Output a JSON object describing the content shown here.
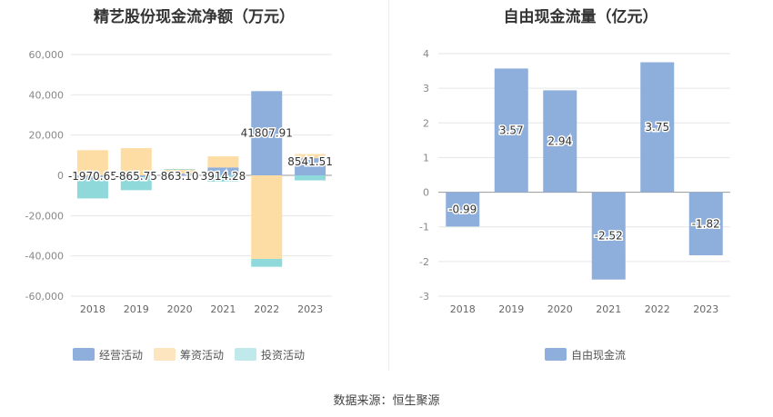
{
  "footer": "数据来源：恒生聚源",
  "chart_data": [
    {
      "type": "bar",
      "stacked": true,
      "title": "精艺股份现金流净额（万元）",
      "categories": [
        "2018",
        "2019",
        "2020",
        "2021",
        "2022",
        "2023"
      ],
      "ylim": [
        -60000,
        60000
      ],
      "yticks": [
        60000,
        40000,
        20000,
        0,
        -20000,
        -40000,
        -60000
      ],
      "ytick_labels": [
        "60,000",
        "40,000",
        "20,000",
        "0",
        "-20,000",
        "-40,000",
        "-60,000"
      ],
      "grid": true,
      "legend": "bottom",
      "series": [
        {
          "name": "经营活动",
          "color": "#8eaedc",
          "values": [
            -1970.65,
            -865.75,
            863.1,
            3914.28,
            41807.91,
            8541.51
          ]
        },
        {
          "name": "筹资活动",
          "color": "#fddda4",
          "values": [
            12500,
            13500,
            2000,
            5500,
            -41500,
            2000
          ]
        },
        {
          "name": "投资活动",
          "color": "#8fd9da",
          "values": [
            -9500,
            -6500,
            300,
            -3200,
            -3900,
            -2500
          ]
        }
      ],
      "data_labels": [
        "-1970.65",
        "-865.75",
        "863.10",
        "3914.28",
        "41807.91",
        "8541.51"
      ]
    },
    {
      "type": "bar",
      "title": "自由现金流量（亿元）",
      "categories": [
        "2018",
        "2019",
        "2020",
        "2021",
        "2022",
        "2023"
      ],
      "ylim": [
        -3,
        4
      ],
      "yticks": [
        4,
        3,
        2,
        1,
        0,
        -1,
        -2,
        -3
      ],
      "ytick_labels": [
        "4",
        "3",
        "2",
        "1",
        "0",
        "-1",
        "-2",
        "-3"
      ],
      "grid": true,
      "legend": "bottom",
      "series": [
        {
          "name": "自由现金流",
          "color": "#8eaedc",
          "values": [
            -0.99,
            3.57,
            2.94,
            -2.52,
            3.75,
            -1.82
          ]
        }
      ],
      "data_labels": [
        "-0.99",
        "3.57",
        "2.94",
        "-2.52",
        "3.75",
        "-1.82"
      ]
    }
  ]
}
